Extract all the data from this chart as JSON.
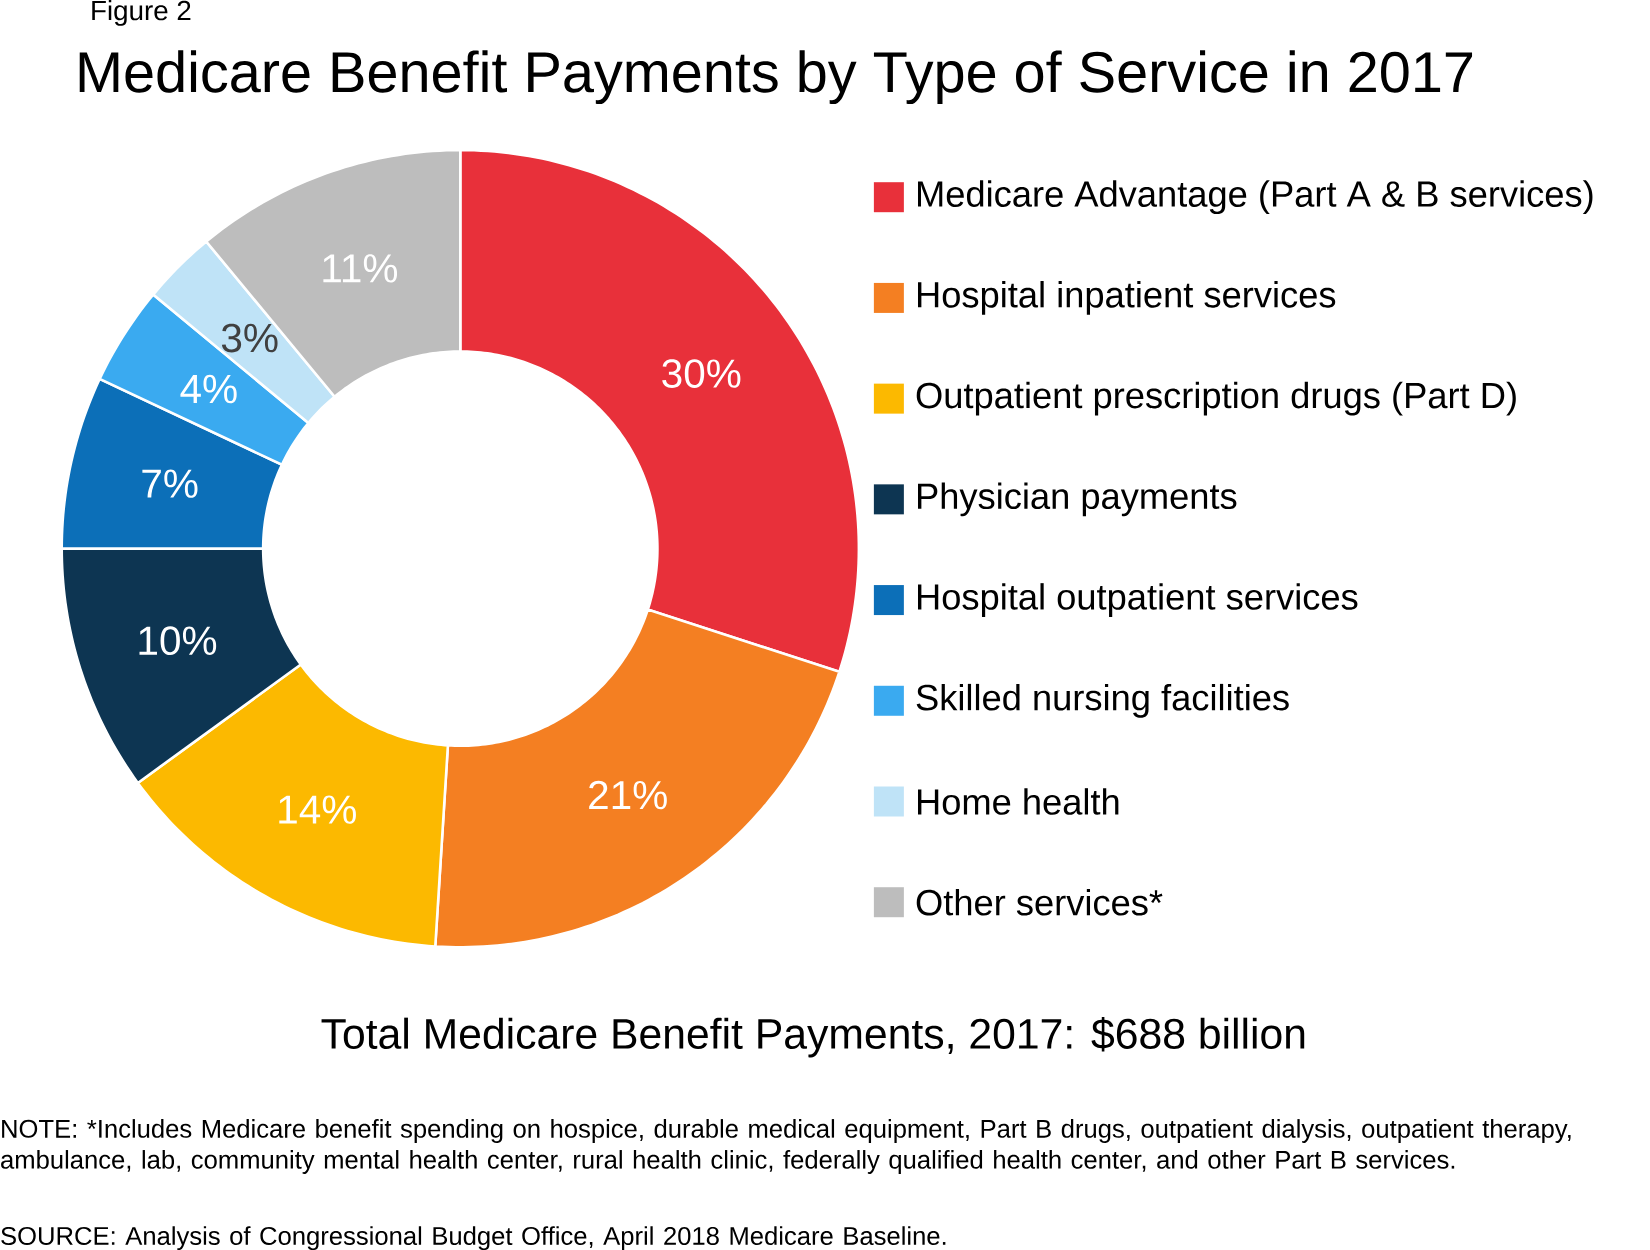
{
  "chart_data": {
    "type": "donut",
    "title": "Medicare Benefit Payments by Type of Service in 2017",
    "categories": [
      "Medicare Advantage (Part A & B services)",
      "Hospital inpatient services",
      "Outpatient prescription drugs (Part D)",
      "Physician payments",
      "Hospital outpatient services",
      "Skilled nursing facilities",
      "Home health",
      "Other services*"
    ],
    "values": [
      30,
      21,
      14,
      10,
      7,
      4,
      3,
      11
    ],
    "value_labels": [
      "30%",
      "21%",
      "14%",
      "10%",
      "7%",
      "4%",
      "3%",
      "11%"
    ],
    "colors": [
      "#e8303a",
      "#f47f22",
      "#fcb900",
      "#0d3552",
      "#0c6fb8",
      "#3aaaf0",
      "#bfe3f7",
      "#bdbdbd"
    ],
    "legend": "right",
    "annotations": [
      "Figure 2",
      "Total Medicare Benefit Payments, 2017: $688 billion",
      "NOTE: *Includes Medicare benefit spending on hospice, durable medical equipment, Part B drugs, outpatient dialysis, outpatient therapy, ambulance, lab, community mental health center, rural health clinic, federally qualified health center, and other Part B services.",
      "SOURCE: Analysis of Congressional Budget Office, April 2018 Medicare Baseline."
    ]
  }
}
